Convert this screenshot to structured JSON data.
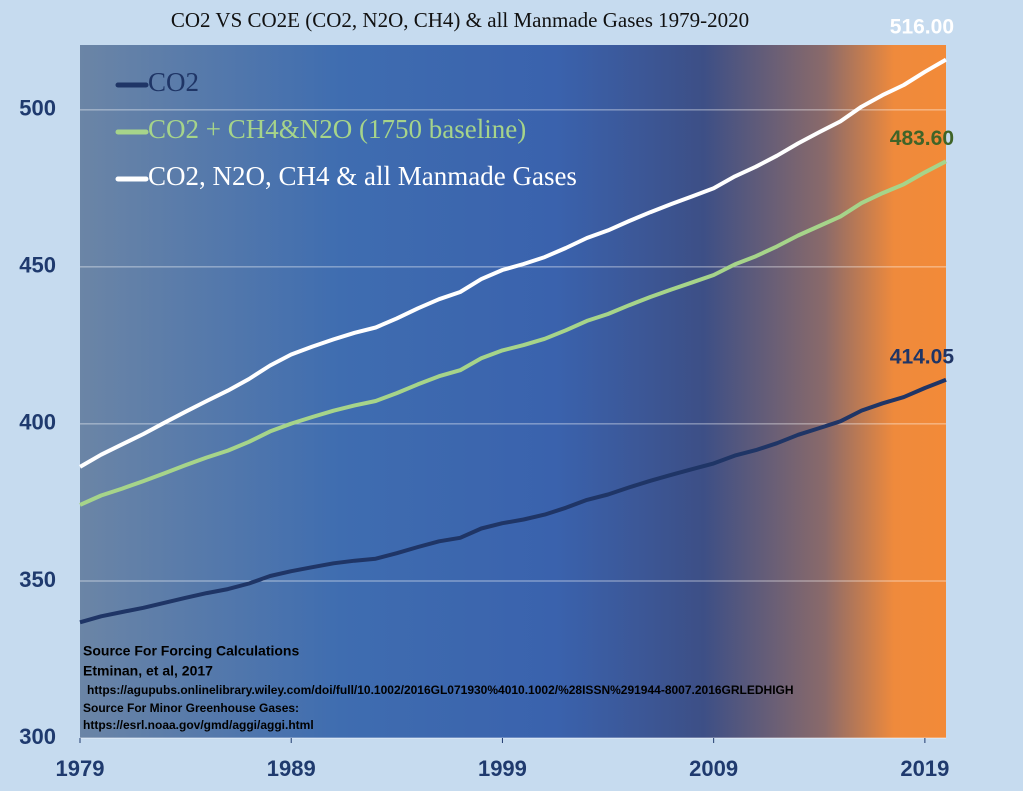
{
  "chart_data": {
    "type": "line",
    "title": "CO2 VS CO2E (CO2, N2O, CH4) & all Manmade Gases 1979-2020",
    "x": [
      1979,
      1980,
      1981,
      1982,
      1983,
      1984,
      1985,
      1986,
      1987,
      1988,
      1989,
      1990,
      1991,
      1992,
      1993,
      1994,
      1995,
      1996,
      1997,
      1998,
      1999,
      2000,
      2001,
      2002,
      2003,
      2004,
      2005,
      2006,
      2007,
      2008,
      2009,
      2010,
      2011,
      2012,
      2013,
      2014,
      2015,
      2016,
      2017,
      2018,
      2019,
      2020
    ],
    "series": [
      {
        "name": "CO2",
        "color": "#1f3566",
        "values": [
          336.84,
          338.75,
          340.11,
          341.45,
          343.05,
          344.65,
          346.12,
          347.42,
          349.19,
          351.57,
          353.12,
          354.39,
          355.61,
          356.45,
          357.1,
          358.83,
          360.82,
          362.61,
          363.73,
          366.7,
          368.38,
          369.55,
          371.14,
          373.28,
          375.8,
          377.52,
          379.8,
          381.9,
          383.79,
          385.6,
          387.43,
          389.9,
          391.65,
          393.85,
          396.52,
          398.65,
          400.83,
          404.24,
          406.55,
          408.52,
          411.44,
          414.05
        ],
        "value_labels": [
          null,
          null,
          null,
          null,
          null,
          null,
          null,
          null,
          null,
          null,
          null,
          null,
          null,
          null,
          null,
          null,
          null,
          null,
          null,
          null,
          null,
          null,
          null,
          null,
          null,
          null,
          null,
          null,
          null,
          null,
          null,
          null,
          null,
          null,
          null,
          null,
          null,
          null,
          null,
          null,
          null,
          "414.05"
        ]
      },
      {
        "name": "CO2 + CH4&N2O (1750 baseline)",
        "color": "#a6d48a",
        "values": [
          374.2,
          377.2,
          379.4,
          381.8,
          384.3,
          386.9,
          389.3,
          391.5,
          394.3,
          397.6,
          400.1,
          402.2,
          404.2,
          405.9,
          407.3,
          409.8,
          412.6,
          415.2,
          417.1,
          420.9,
          423.4,
          425.1,
          427.1,
          429.8,
          432.8,
          435.0,
          437.8,
          440.4,
          442.8,
          445.1,
          447.4,
          450.8,
          453.4,
          456.5,
          460.0,
          463.0,
          466.0,
          470.3,
          473.5,
          476.3,
          480.1,
          483.6
        ],
        "value_labels": [
          null,
          null,
          null,
          null,
          null,
          null,
          null,
          null,
          null,
          null,
          null,
          null,
          null,
          null,
          null,
          null,
          null,
          null,
          null,
          null,
          null,
          null,
          null,
          null,
          null,
          null,
          null,
          null,
          null,
          null,
          null,
          null,
          null,
          null,
          null,
          null,
          null,
          null,
          null,
          null,
          null,
          "483.60"
        ]
      },
      {
        "name": "CO2, N2O, CH4 & all Manmade Gases",
        "color": "#ffffff",
        "values": [
          386.3,
          390.2,
          393.5,
          396.8,
          400.4,
          403.9,
          407.3,
          410.6,
          414.3,
          418.6,
          422.1,
          424.6,
          426.9,
          429.0,
          430.7,
          433.6,
          436.8,
          439.7,
          442.0,
          446.1,
          449.0,
          450.9,
          453.1,
          456.0,
          459.2,
          461.6,
          464.6,
          467.4,
          470.0,
          472.5,
          475.0,
          478.8,
          481.9,
          485.4,
          489.3,
          492.9,
          496.3,
          501.0,
          504.7,
          507.9,
          512.1,
          516.0
        ],
        "value_labels": [
          null,
          null,
          null,
          null,
          null,
          null,
          null,
          null,
          null,
          null,
          null,
          null,
          null,
          null,
          null,
          null,
          null,
          null,
          null,
          null,
          null,
          null,
          null,
          null,
          null,
          null,
          null,
          null,
          null,
          null,
          null,
          null,
          null,
          null,
          null,
          null,
          null,
          null,
          null,
          null,
          null,
          "516.00"
        ]
      }
    ],
    "xlim": [
      1979,
      2020
    ],
    "xticks": [
      1979,
      1989,
      1999,
      2009,
      2019
    ],
    "ylim": [
      300,
      520
    ],
    "yticks": [
      300,
      350,
      400,
      450,
      500
    ],
    "grid": true,
    "legend": "upper left",
    "annotations": [
      "Source For Forcing Calculations",
      "Etminan, et al, 2017",
      "https://agupubs.onlinelibrary.wiley.com/doi/full/10.1002/2016GL071930%4010.1002/%28ISSN%291944-8007.2016GRLEDHIGH",
      "Source For Minor Greenhouse Gases:",
      "https://esrl.noaa.gov/gmd/aggi/aggi.html"
    ]
  }
}
